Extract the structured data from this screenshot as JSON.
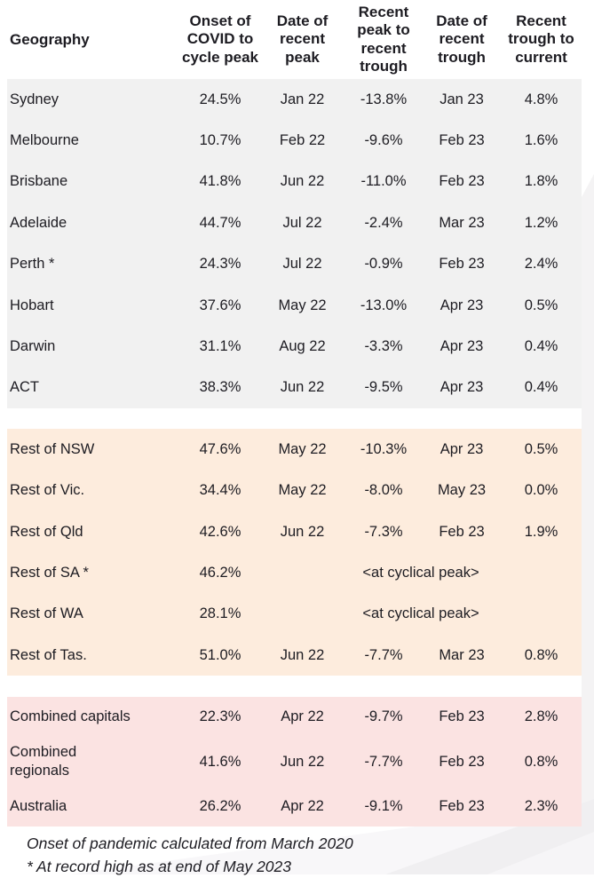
{
  "page": {
    "background": "#ffffff",
    "text_color": "#1d1c22"
  },
  "table": {
    "header": {
      "geography": "Geography",
      "col_onset": "Onset of\nCOVID to\ncycle peak",
      "col_peak_date": "Date of\nrecent\npeak",
      "col_peak_to_trough": "Recent\npeak to\nrecent\ntrough",
      "col_trough_date": "Date of\nrecent\ntrough",
      "col_trough_to_current": "Recent\ntrough to\ncurrent"
    },
    "sections": [
      {
        "name": "capital-cities",
        "background": "#f1f1f1",
        "rows": [
          {
            "geography": "Sydney",
            "values": [
              "24.5%",
              "Jan 22",
              "-13.8%",
              "Jan 23",
              "4.8%"
            ]
          },
          {
            "geography": "Melbourne",
            "values": [
              "10.7%",
              "Feb 22",
              "-9.6%",
              "Feb 23",
              "1.6%"
            ]
          },
          {
            "geography": "Brisbane",
            "values": [
              "41.8%",
              "Jun 22",
              "-11.0%",
              "Feb 23",
              "1.8%"
            ]
          },
          {
            "geography": "Adelaide",
            "values": [
              "44.7%",
              "Jul 22",
              "-2.4%",
              "Mar 23",
              "1.2%"
            ]
          },
          {
            "geography": "Perth *",
            "values": [
              "24.3%",
              "Jul 22",
              "-0.9%",
              "Feb 23",
              "2.4%"
            ]
          },
          {
            "geography": "Hobart",
            "values": [
              "37.6%",
              "May 22",
              "-13.0%",
              "Apr 23",
              "0.5%"
            ]
          },
          {
            "geography": "Darwin",
            "values": [
              "31.1%",
              "Aug 22",
              "-3.3%",
              "Apr 23",
              "0.4%"
            ]
          },
          {
            "geography": "ACT",
            "values": [
              "38.3%",
              "Jun 22",
              "-9.5%",
              "Apr 23",
              "0.4%"
            ]
          }
        ]
      },
      {
        "name": "rest-of-state",
        "background": "#fdecdd",
        "rows": [
          {
            "geography": "Rest of NSW",
            "values": [
              "47.6%",
              "May 22",
              "-10.3%",
              "Apr 23",
              "0.5%"
            ]
          },
          {
            "geography": "Rest of Vic.",
            "values": [
              "34.4%",
              "May 22",
              "-8.0%",
              "May 23",
              "0.0%"
            ]
          },
          {
            "geography": "Rest of Qld",
            "values": [
              "42.6%",
              "Jun 22",
              "-7.3%",
              "Feb 23",
              "1.9%"
            ]
          },
          {
            "geography": "Rest of SA *",
            "values": [
              "46.2%"
            ],
            "merged": "<at cyclical peak>"
          },
          {
            "geography": "Rest of WA",
            "values": [
              "28.1%"
            ],
            "merged": "<at cyclical peak>"
          },
          {
            "geography": "Rest of Tas.",
            "values": [
              "51.0%",
              "Jun 22",
              "-7.7%",
              "Mar 23",
              "0.8%"
            ]
          }
        ]
      },
      {
        "name": "combined",
        "background": "#fbe3e2",
        "rows": [
          {
            "geography": "Combined capitals",
            "values": [
              "22.3%",
              "Apr 22",
              "-9.7%",
              "Feb 23",
              "2.8%"
            ]
          },
          {
            "geography": "Combined\nregionals",
            "tall": true,
            "values": [
              "41.6%",
              "Jun 22",
              "-7.7%",
              "Feb 23",
              "0.8%"
            ]
          },
          {
            "geography": "Australia",
            "values": [
              "26.2%",
              "Apr 22",
              "-9.1%",
              "Feb 23",
              "2.3%"
            ]
          }
        ]
      }
    ]
  },
  "notes": {
    "line1": "Onset of pandemic calculated from March 2020",
    "line2": "* At record high as at end of May 2023"
  },
  "chart_data": {
    "type": "table",
    "title": "",
    "columns": [
      "Geography",
      "Onset of COVID to cycle peak",
      "Date of recent peak",
      "Recent peak to recent trough",
      "Date of recent trough",
      "Recent trough to current"
    ],
    "rows": [
      [
        "Sydney",
        "24.5%",
        "Jan 22",
        "-13.8%",
        "Jan 23",
        "4.8%"
      ],
      [
        "Melbourne",
        "10.7%",
        "Feb 22",
        "-9.6%",
        "Feb 23",
        "1.6%"
      ],
      [
        "Brisbane",
        "41.8%",
        "Jun 22",
        "-11.0%",
        "Feb 23",
        "1.8%"
      ],
      [
        "Adelaide",
        "44.7%",
        "Jul 22",
        "-2.4%",
        "Mar 23",
        "1.2%"
      ],
      [
        "Perth *",
        "24.3%",
        "Jul 22",
        "-0.9%",
        "Feb 23",
        "2.4%"
      ],
      [
        "Hobart",
        "37.6%",
        "May 22",
        "-13.0%",
        "Apr 23",
        "0.5%"
      ],
      [
        "Darwin",
        "31.1%",
        "Aug 22",
        "-3.3%",
        "Apr 23",
        "0.4%"
      ],
      [
        "ACT",
        "38.3%",
        "Jun 22",
        "-9.5%",
        "Apr 23",
        "0.4%"
      ],
      [
        "Rest of NSW",
        "47.6%",
        "May 22",
        "-10.3%",
        "Apr 23",
        "0.5%"
      ],
      [
        "Rest of Vic.",
        "34.4%",
        "May 22",
        "-8.0%",
        "May 23",
        "0.0%"
      ],
      [
        "Rest of Qld",
        "42.6%",
        "Jun 22",
        "-7.3%",
        "Feb 23",
        "1.9%"
      ],
      [
        "Rest of SA *",
        "46.2%",
        "<at cyclical peak>",
        "",
        "",
        ""
      ],
      [
        "Rest of WA",
        "28.1%",
        "<at cyclical peak>",
        "",
        "",
        ""
      ],
      [
        "Rest of Tas.",
        "51.0%",
        "Jun 22",
        "-7.7%",
        "Mar 23",
        "0.8%"
      ],
      [
        "Combined capitals",
        "22.3%",
        "Apr 22",
        "-9.7%",
        "Feb 23",
        "2.8%"
      ],
      [
        "Combined regionals",
        "41.6%",
        "Jun 22",
        "-7.7%",
        "Feb 23",
        "0.8%"
      ],
      [
        "Australia",
        "26.2%",
        "Apr 22",
        "-9.1%",
        "Feb 23",
        "2.3%"
      ]
    ],
    "section_colors": [
      "#f1f1f1",
      "#fdecdd",
      "#fbe3e2"
    ],
    "notes": [
      "Onset of pandemic calculated from March 2020",
      "* At record high as at end of May 2023"
    ]
  }
}
